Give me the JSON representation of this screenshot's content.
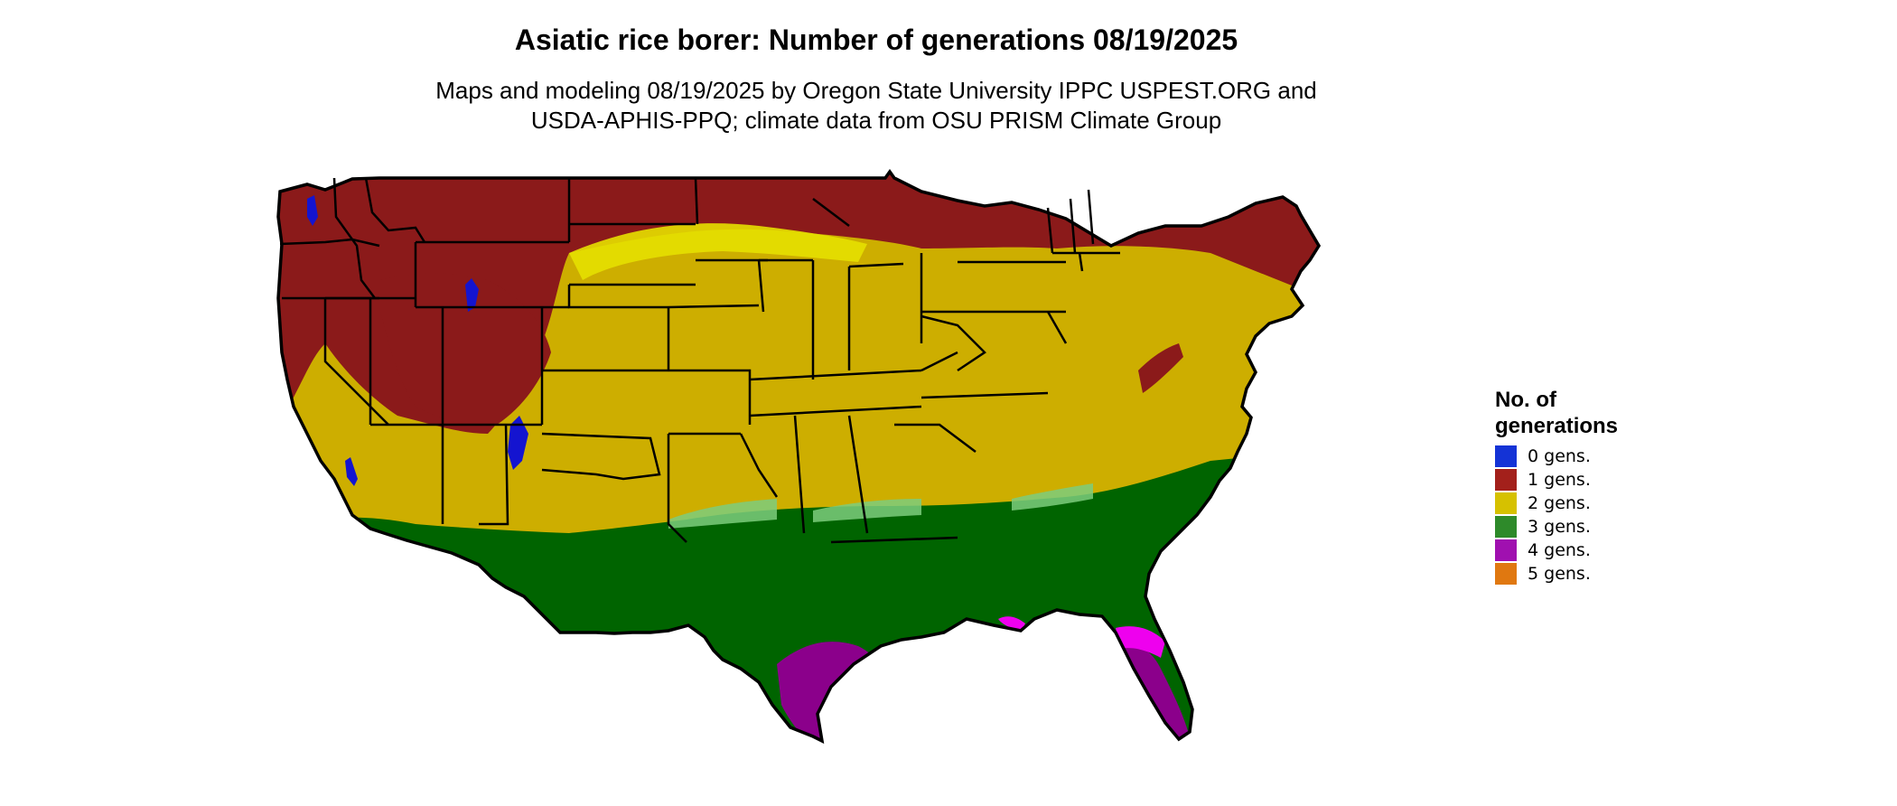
{
  "title": "Asiatic rice borer: Number of generations 08/19/2025",
  "subtitle": {
    "line1": "Maps and modeling 08/19/2025 by Oregon State University IPPC USPEST.ORG and",
    "line2": "USDA-APHIS-PPQ; climate data from OSU PRISM Climate Group"
  },
  "legend": {
    "title_line1": "No. of",
    "title_line2": "generations",
    "items": [
      {
        "label": "0 gens.",
        "color": "#1433d6"
      },
      {
        "label": "1 gens.",
        "color": "#a3201b"
      },
      {
        "label": "2 gens.",
        "color": "#d6c100"
      },
      {
        "label": "3 gens.",
        "color": "#2e8a2a"
      },
      {
        "label": "4 gens.",
        "color": "#a010b0"
      },
      {
        "label": "5 gens.",
        "color": "#e07810"
      }
    ]
  },
  "map_colors": {
    "one_gen": "#8b1a1a",
    "two_gen": "#cdae00",
    "two_gen_light": "#e6e000",
    "three_gen": "#006400",
    "three_gen_light": "#7ccd7c",
    "four_gen": "#8b008b",
    "four_gen_light": "#ee00ee",
    "zero_gen": "#1414d0",
    "five_gen": "#ff7f00",
    "border": "#000000"
  }
}
